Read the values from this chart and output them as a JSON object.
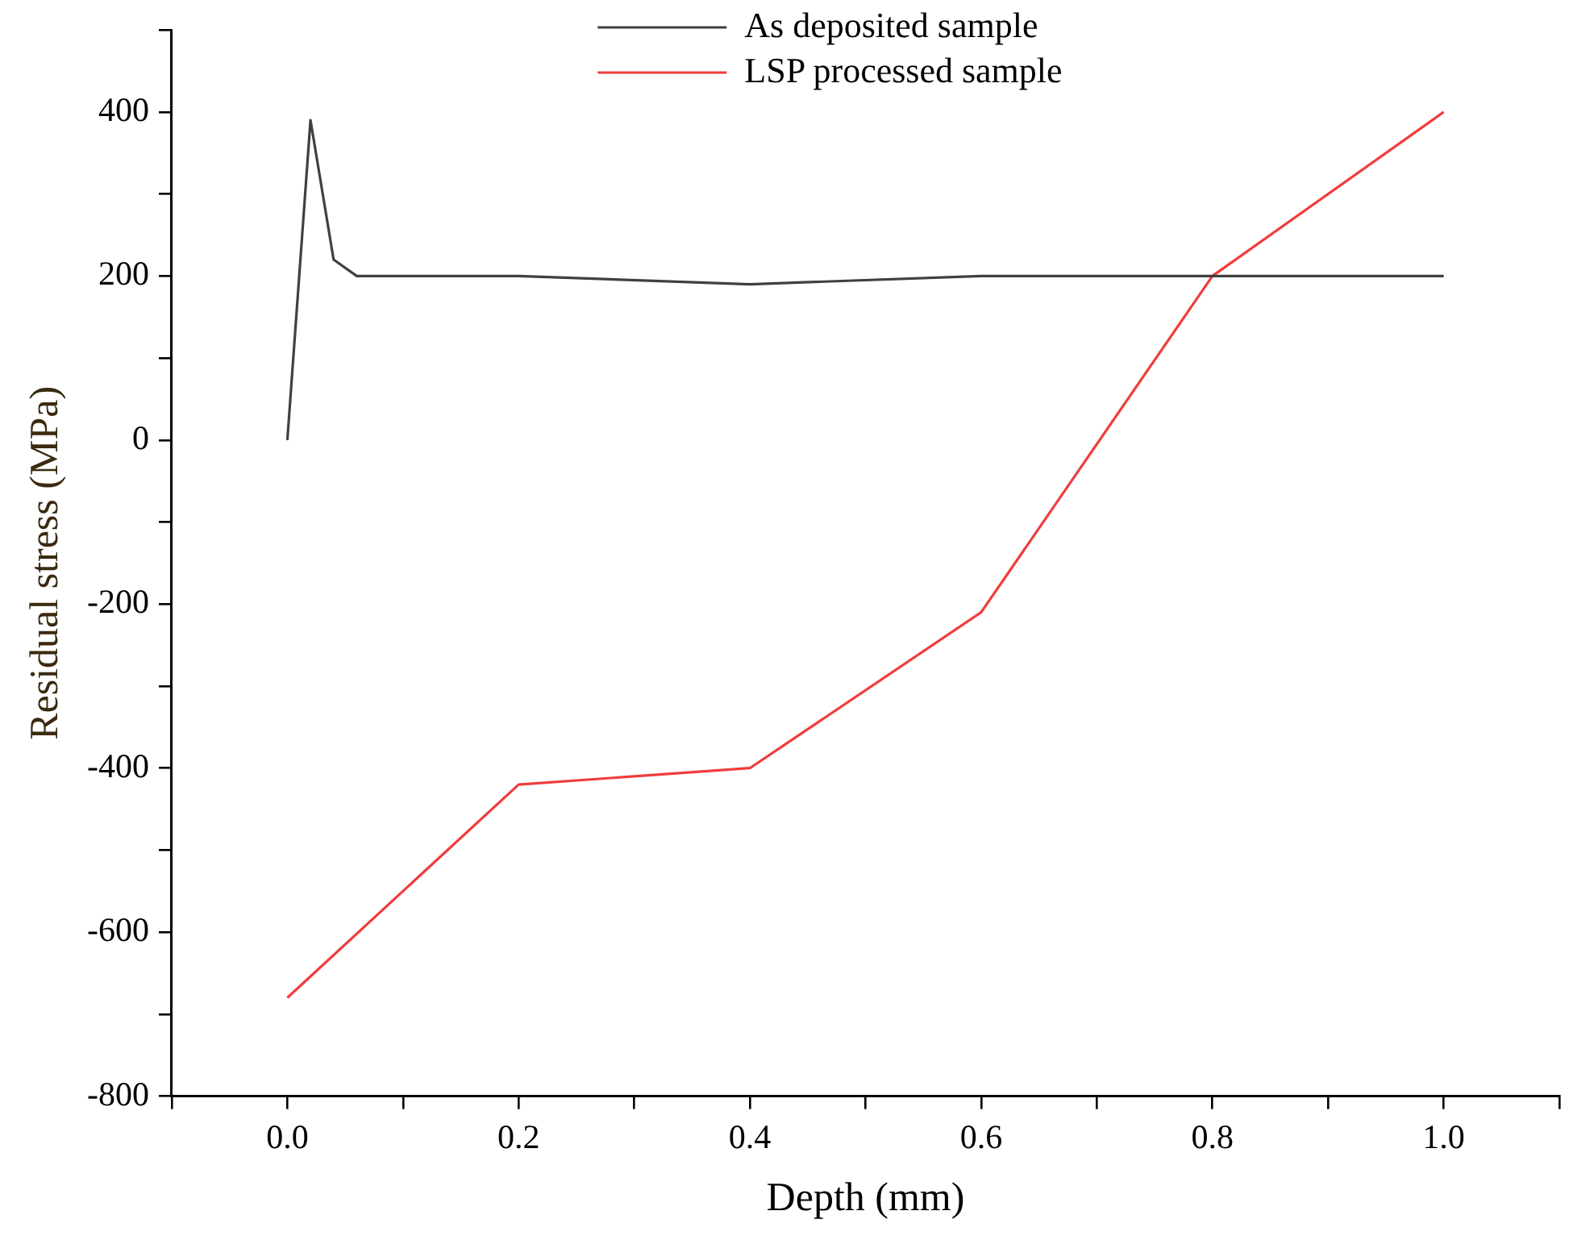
{
  "chart_data": {
    "type": "line",
    "xlabel": "Depth (mm)",
    "ylabel": "Residual stress (MPa)",
    "xlim": [
      -0.1,
      1.1
    ],
    "ylim": [
      -800,
      500
    ],
    "xticks": [
      {
        "value": -0.1,
        "label": null
      },
      {
        "value": 0,
        "label": "0.0"
      },
      {
        "value": 0.1,
        "label": null
      },
      {
        "value": 0.2,
        "label": "0.2"
      },
      {
        "value": 0.3,
        "label": null
      },
      {
        "value": 0.4,
        "label": "0.4"
      },
      {
        "value": 0.5,
        "label": null
      },
      {
        "value": 0.6,
        "label": "0.6"
      },
      {
        "value": 0.7,
        "label": null
      },
      {
        "value": 0.8,
        "label": "0.8"
      },
      {
        "value": 0.9,
        "label": null
      },
      {
        "value": 1,
        "label": "1.0"
      },
      {
        "value": 1.1,
        "label": null
      }
    ],
    "yticks": [
      -800,
      {
        "value": -700,
        "label": null
      },
      -600,
      {
        "value": -500,
        "label": null
      },
      -400,
      {
        "value": -300,
        "label": null
      },
      -200,
      {
        "value": -100,
        "label": null
      },
      0,
      {
        "value": 100,
        "label": null
      },
      200,
      {
        "value": 300,
        "label": null
      },
      400,
      {
        "value": 500,
        "label": null
      }
    ],
    "grid": false,
    "legend": "top",
    "marker": "none",
    "line_style": "solid",
    "series": [
      {
        "name": "As deposited sample",
        "color": "#404040",
        "x": [
          0,
          0.02,
          0.04,
          0.06,
          0.2,
          0.4,
          0.6,
          0.8,
          1.0
        ],
        "values": [
          0,
          390,
          220,
          200,
          200,
          190,
          200,
          200,
          200
        ]
      },
      {
        "name": "LSP processed sample",
        "color": "#f03c3c",
        "x": [
          0,
          0.2,
          0.4,
          0.6,
          0.8,
          1.0
        ],
        "values": [
          -680,
          -420,
          -400,
          -210,
          200,
          400
        ]
      }
    ]
  }
}
